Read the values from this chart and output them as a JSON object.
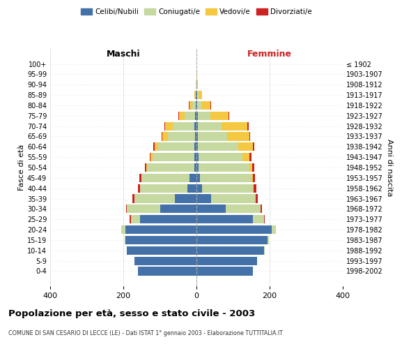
{
  "age_groups": [
    "0-4",
    "5-9",
    "10-14",
    "15-19",
    "20-24",
    "25-29",
    "30-34",
    "35-39",
    "40-44",
    "45-49",
    "50-54",
    "55-59",
    "60-64",
    "65-69",
    "70-74",
    "75-79",
    "80-84",
    "85-89",
    "90-94",
    "95-99",
    "100+"
  ],
  "birth_years": [
    "1998-2002",
    "1993-1997",
    "1988-1992",
    "1983-1987",
    "1978-1982",
    "1973-1977",
    "1968-1972",
    "1963-1967",
    "1958-1962",
    "1953-1957",
    "1948-1952",
    "1943-1947",
    "1938-1942",
    "1933-1937",
    "1928-1932",
    "1923-1927",
    "1918-1922",
    "1913-1917",
    "1908-1912",
    "1903-1907",
    "≤ 1902"
  ],
  "maschi": {
    "celibi": [
      160,
      170,
      190,
      195,
      195,
      155,
      100,
      60,
      25,
      20,
      6,
      5,
      5,
      4,
      5,
      3,
      2,
      1,
      0,
      0,
      0
    ],
    "coniugati": [
      0,
      0,
      1,
      2,
      10,
      25,
      90,
      110,
      130,
      130,
      130,
      115,
      100,
      75,
      60,
      30,
      10,
      3,
      1,
      0,
      0
    ],
    "vedovi": [
      0,
      0,
      0,
      0,
      0,
      0,
      0,
      0,
      0,
      1,
      2,
      5,
      10,
      15,
      20,
      15,
      8,
      2,
      0,
      0,
      0
    ],
    "divorziati": [
      0,
      0,
      0,
      0,
      1,
      2,
      3,
      5,
      5,
      5,
      3,
      3,
      3,
      2,
      2,
      1,
      1,
      0,
      0,
      0,
      0
    ]
  },
  "femmine": {
    "nubili": [
      155,
      165,
      185,
      195,
      205,
      155,
      80,
      40,
      15,
      10,
      5,
      5,
      4,
      4,
      4,
      3,
      2,
      1,
      0,
      0,
      0
    ],
    "coniugate": [
      0,
      0,
      1,
      3,
      12,
      30,
      95,
      120,
      140,
      140,
      140,
      120,
      110,
      80,
      65,
      35,
      12,
      4,
      1,
      0,
      0
    ],
    "vedove": [
      0,
      0,
      0,
      0,
      0,
      0,
      0,
      1,
      2,
      4,
      8,
      20,
      40,
      60,
      70,
      50,
      25,
      10,
      3,
      1,
      0
    ],
    "divorziate": [
      0,
      0,
      0,
      0,
      1,
      2,
      4,
      6,
      6,
      6,
      6,
      5,
      5,
      3,
      3,
      1,
      1,
      0,
      0,
      0,
      0
    ]
  },
  "colors": {
    "celibi": "#4472a8",
    "coniugati": "#c5d9a0",
    "vedovi": "#f5c842",
    "divorziati": "#cc2222"
  },
  "legend_labels": [
    "Celibi/Nubili",
    "Coniugati/e",
    "Vedovi/e",
    "Divorziati/e"
  ],
  "title": "Popolazione per età, sesso e stato civile - 2003",
  "subtitle": "COMUNE DI SAN CESARIO DI LECCE (LE) - Dati ISTAT 1° gennaio 2003 - Elaborazione TUTTITALIA.IT",
  "ylabel_left": "Fasce di età",
  "ylabel_right": "Anni di nascita",
  "xlabel_left": "Maschi",
  "xlabel_right": "Femmine",
  "xlim": 400,
  "background_color": "#ffffff",
  "grid_color": "#cccccc"
}
